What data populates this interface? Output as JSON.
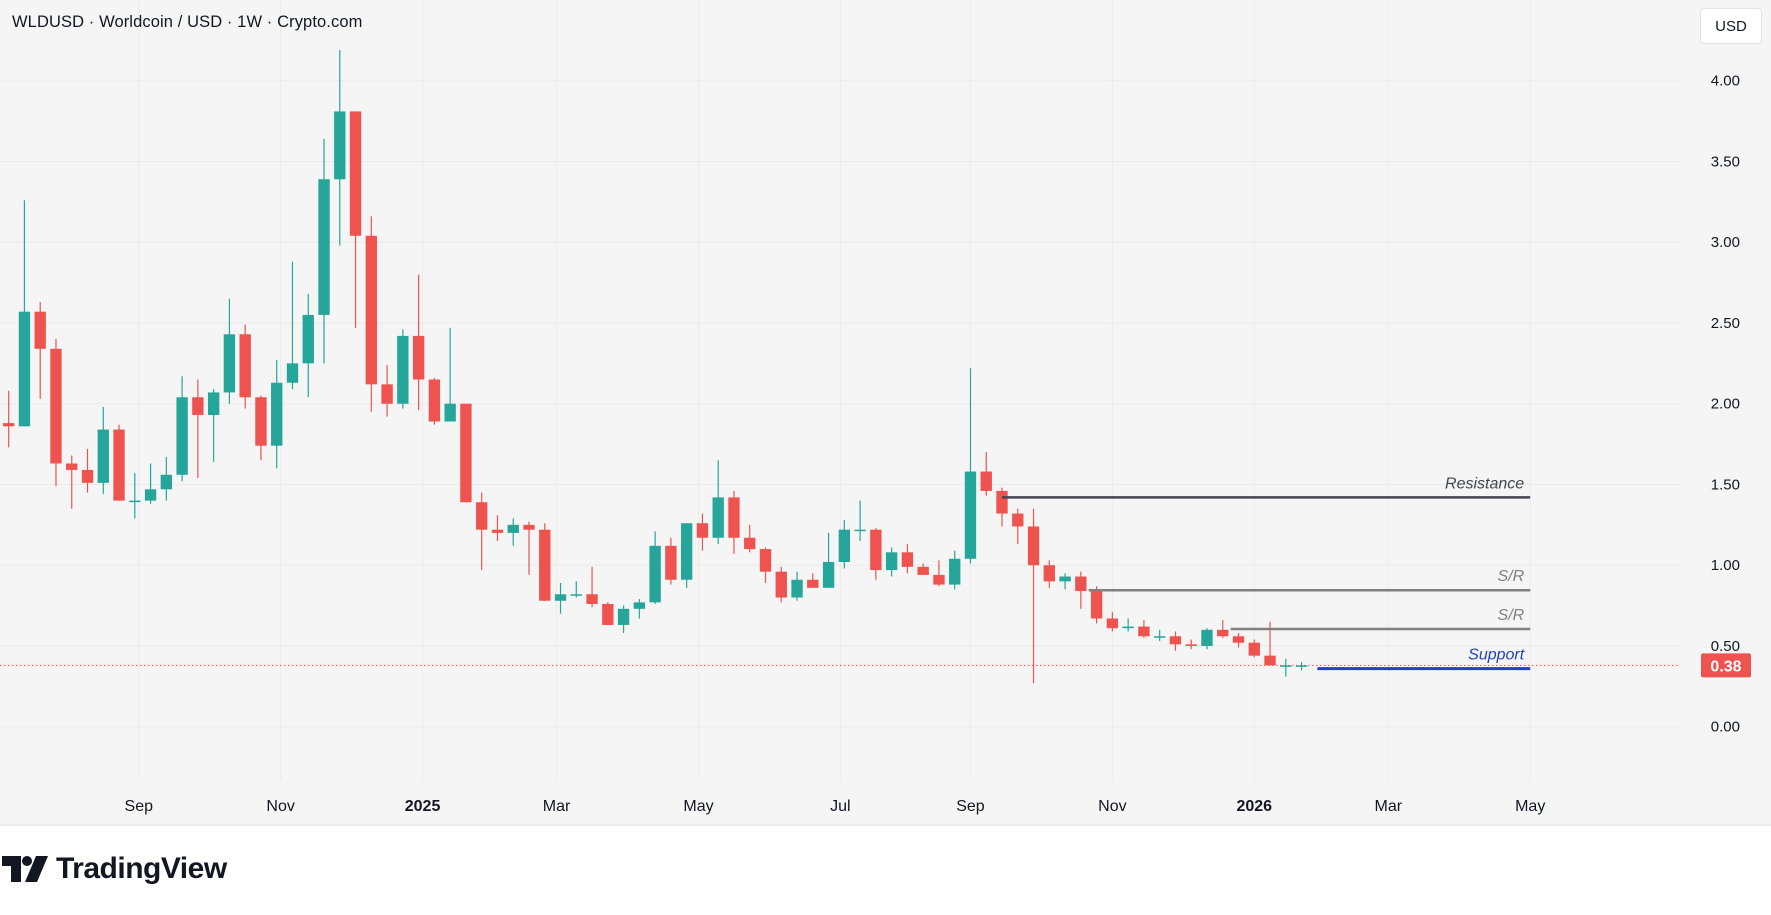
{
  "header": {
    "title": "WLDUSD · Worldcoin / USD · 1W · Crypto.com",
    "currency_button": "USD"
  },
  "footer": {
    "brand": "TradingView"
  },
  "colors": {
    "up": "#26a69a",
    "down": "#ef5350",
    "support": "#2340c8",
    "support_label": "#2340c8",
    "resistance": "#434651",
    "sr": "#808080",
    "price_line": "#ef5350",
    "grid": "#ebebeb",
    "axis_text": "#131722"
  },
  "chart_data": {
    "type": "candlestick",
    "symbol": "WLDUSD",
    "name": "Worldcoin / USD",
    "interval": "1W",
    "exchange": "Crypto.com",
    "y_axis": {
      "ticks": [
        0.0,
        0.5,
        1.0,
        1.5,
        2.0,
        2.5,
        3.0,
        3.5,
        4.0
      ],
      "tick_labels": [
        "0.00",
        "0.50",
        "1.00",
        "1.50",
        "2.00",
        "2.50",
        "3.00",
        "3.50",
        "4.00"
      ],
      "range": [
        -0.33,
        4.5
      ]
    },
    "x_axis": {
      "week_range": [
        -0.55,
        106
      ],
      "labels": [
        {
          "text": "Sep",
          "week": 8.25,
          "bold": false
        },
        {
          "text": "Nov",
          "week": 17.25,
          "bold": false
        },
        {
          "text": "2025",
          "week": 26.25,
          "bold": true
        },
        {
          "text": "Mar",
          "week": 34.75,
          "bold": false
        },
        {
          "text": "May",
          "week": 43.75,
          "bold": false
        },
        {
          "text": "Jul",
          "week": 52.75,
          "bold": false
        },
        {
          "text": "Sep",
          "week": 61.0,
          "bold": false
        },
        {
          "text": "Nov",
          "week": 70.0,
          "bold": false
        },
        {
          "text": "2026",
          "week": 79.0,
          "bold": true
        },
        {
          "text": "Mar",
          "week": 87.5,
          "bold": false
        },
        {
          "text": "May",
          "week": 96.5,
          "bold": false
        }
      ]
    },
    "candles": [
      [
        1.88,
        2.08,
        1.73,
        1.86
      ],
      [
        1.86,
        3.26,
        1.86,
        2.57
      ],
      [
        2.57,
        2.63,
        2.03,
        2.34
      ],
      [
        2.34,
        2.4,
        1.49,
        1.63
      ],
      [
        1.63,
        1.68,
        1.35,
        1.59
      ],
      [
        1.59,
        1.72,
        1.45,
        1.51
      ],
      [
        1.51,
        1.98,
        1.44,
        1.84
      ],
      [
        1.84,
        1.87,
        1.4,
        1.4
      ],
      [
        1.4,
        1.57,
        1.29,
        1.4
      ],
      [
        1.4,
        1.63,
        1.38,
        1.47
      ],
      [
        1.47,
        1.67,
        1.4,
        1.56
      ],
      [
        1.56,
        2.17,
        1.52,
        2.04
      ],
      [
        2.04,
        2.15,
        1.54,
        1.93
      ],
      [
        1.93,
        2.09,
        1.64,
        2.07
      ],
      [
        2.07,
        2.65,
        2.0,
        2.43
      ],
      [
        2.43,
        2.49,
        1.97,
        2.04
      ],
      [
        2.04,
        2.05,
        1.65,
        1.74
      ],
      [
        1.74,
        2.27,
        1.6,
        2.13
      ],
      [
        2.13,
        2.88,
        2.09,
        2.25
      ],
      [
        2.25,
        2.68,
        2.04,
        2.55
      ],
      [
        2.55,
        3.64,
        2.25,
        3.39
      ],
      [
        3.39,
        4.19,
        2.98,
        3.81
      ],
      [
        3.81,
        3.81,
        2.47,
        3.04
      ],
      [
        3.04,
        3.16,
        1.95,
        2.12
      ],
      [
        2.12,
        2.24,
        1.92,
        2.0
      ],
      [
        2.0,
        2.46,
        1.97,
        2.42
      ],
      [
        2.42,
        2.8,
        1.96,
        2.15
      ],
      [
        2.15,
        2.16,
        1.87,
        1.89
      ],
      [
        1.89,
        2.47,
        1.89,
        2.0
      ],
      [
        2.0,
        2.0,
        1.39,
        1.39
      ],
      [
        1.39,
        1.45,
        0.97,
        1.22
      ],
      [
        1.22,
        1.31,
        1.15,
        1.2
      ],
      [
        1.2,
        1.29,
        1.12,
        1.25
      ],
      [
        1.25,
        1.27,
        0.94,
        1.22
      ],
      [
        1.22,
        1.26,
        0.78,
        0.78
      ],
      [
        0.78,
        0.89,
        0.7,
        0.82
      ],
      [
        0.82,
        0.9,
        0.8,
        0.82
      ],
      [
        0.82,
        0.99,
        0.74,
        0.76
      ],
      [
        0.76,
        0.77,
        0.63,
        0.63
      ],
      [
        0.63,
        0.75,
        0.58,
        0.73
      ],
      [
        0.73,
        0.79,
        0.67,
        0.77
      ],
      [
        0.77,
        1.21,
        0.76,
        1.12
      ],
      [
        1.12,
        1.17,
        0.88,
        0.91
      ],
      [
        0.91,
        1.26,
        0.86,
        1.26
      ],
      [
        1.26,
        1.32,
        1.09,
        1.17
      ],
      [
        1.17,
        1.65,
        1.13,
        1.42
      ],
      [
        1.42,
        1.46,
        1.07,
        1.17
      ],
      [
        1.17,
        1.25,
        1.08,
        1.1
      ],
      [
        1.1,
        1.11,
        0.89,
        0.96
      ],
      [
        0.96,
        0.99,
        0.77,
        0.8
      ],
      [
        0.8,
        0.96,
        0.78,
        0.91
      ],
      [
        0.91,
        0.95,
        0.88,
        0.86
      ],
      [
        0.86,
        1.2,
        0.86,
        1.02
      ],
      [
        1.02,
        1.28,
        0.98,
        1.22
      ],
      [
        1.22,
        1.4,
        1.15,
        1.22
      ],
      [
        1.22,
        1.23,
        0.91,
        0.97
      ],
      [
        0.97,
        1.11,
        0.93,
        1.08
      ],
      [
        1.08,
        1.13,
        0.95,
        0.99
      ],
      [
        0.99,
        1.01,
        0.95,
        0.94
      ],
      [
        0.94,
        1.03,
        0.87,
        0.88
      ],
      [
        0.88,
        1.09,
        0.85,
        1.04
      ],
      [
        1.04,
        2.22,
        1.01,
        1.58
      ],
      [
        1.58,
        1.7,
        1.43,
        1.46
      ],
      [
        1.46,
        1.48,
        1.24,
        1.32
      ],
      [
        1.32,
        1.35,
        1.13,
        1.24
      ],
      [
        1.24,
        1.35,
        0.27,
        1.0
      ],
      [
        1.0,
        1.03,
        0.86,
        0.9
      ],
      [
        0.9,
        0.95,
        0.85,
        0.93
      ],
      [
        0.93,
        0.96,
        0.73,
        0.84
      ],
      [
        0.84,
        0.87,
        0.64,
        0.67
      ],
      [
        0.67,
        0.71,
        0.59,
        0.61
      ],
      [
        0.61,
        0.67,
        0.59,
        0.62
      ],
      [
        0.62,
        0.66,
        0.55,
        0.56
      ],
      [
        0.56,
        0.6,
        0.53,
        0.56
      ],
      [
        0.56,
        0.59,
        0.47,
        0.51
      ],
      [
        0.51,
        0.54,
        0.48,
        0.5
      ],
      [
        0.5,
        0.61,
        0.48,
        0.6
      ],
      [
        0.6,
        0.66,
        0.55,
        0.56
      ],
      [
        0.56,
        0.58,
        0.49,
        0.52
      ],
      [
        0.52,
        0.54,
        0.43,
        0.44
      ],
      [
        0.44,
        0.65,
        0.38,
        0.38
      ],
      [
        0.38,
        0.42,
        0.31,
        0.38
      ],
      [
        0.38,
        0.4,
        0.35,
        0.38
      ]
    ],
    "levels": [
      {
        "label": "Resistance",
        "value": 1.42,
        "from_week": 63.0,
        "to_week": 96.5,
        "style": "resistance"
      },
      {
        "label": "S/R",
        "value": 0.845,
        "from_week": 68.5,
        "to_week": 96.5,
        "style": "sr"
      },
      {
        "label": "S/R",
        "value": 0.605,
        "from_week": 77.5,
        "to_week": 96.5,
        "style": "sr"
      },
      {
        "label": "Support",
        "value": 0.36,
        "from_week": 83.0,
        "to_week": 96.5,
        "style": "support"
      }
    ],
    "last_price": 0.38,
    "last_price_label": "0.38"
  }
}
